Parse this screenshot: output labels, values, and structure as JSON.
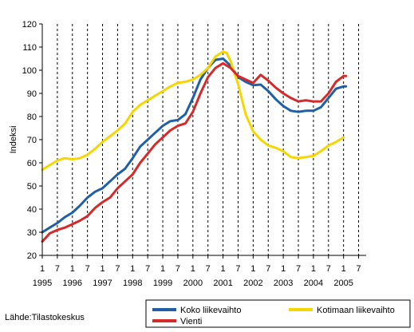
{
  "chart_data": {
    "type": "line",
    "ylabel": "Indeksi",
    "ylim": [
      20,
      120
    ],
    "yticks": [
      20,
      30,
      40,
      50,
      60,
      70,
      80,
      90,
      100,
      110,
      120
    ],
    "xlim": [
      1995.0,
      2005.75
    ],
    "month_tick_labels": [
      "1",
      "7",
      "1",
      "7",
      "1",
      "7",
      "1",
      "7",
      "1",
      "7",
      "1",
      "7",
      "1",
      "7",
      "1",
      "7",
      "1",
      "7",
      "1",
      "7",
      "1",
      "7"
    ],
    "year_labels": [
      "1995",
      "1996",
      "1997",
      "1998",
      "1999",
      "2000",
      "2001",
      "2002",
      "2003",
      "2004",
      "2005"
    ],
    "grid": "vertical dashed lines at each half-year",
    "legend_position": "bottom-right",
    "series": [
      {
        "name": "Koko liikevaihto",
        "color": "#1f5fa6",
        "x": [
          1995.0,
          1995.25,
          1995.5,
          1995.75,
          1996.0,
          1996.25,
          1996.5,
          1996.75,
          1997.0,
          1997.25,
          1997.5,
          1997.75,
          1998.0,
          1998.25,
          1998.5,
          1998.75,
          1999.0,
          1999.25,
          1999.5,
          1999.75,
          2000.0,
          2000.25,
          2000.5,
          2000.75,
          2001.0,
          2001.25,
          2001.5,
          2001.75,
          2002.0,
          2002.25,
          2002.5,
          2002.75,
          2003.0,
          2003.25,
          2003.5,
          2003.75,
          2004.0,
          2004.25,
          2004.5,
          2004.75,
          2005.0,
          2005.08
        ],
        "y": [
          30,
          32,
          34,
          36.5,
          38.5,
          41.5,
          45,
          47.5,
          49,
          52,
          55,
          57.5,
          62,
          67,
          70,
          73,
          76,
          78,
          78.5,
          81,
          88,
          96,
          101,
          104.5,
          105,
          102,
          97,
          95,
          93.5,
          93.8,
          91,
          87.5,
          84.5,
          82.5,
          82,
          82.5,
          82.5,
          84,
          88,
          92,
          93,
          93
        ]
      },
      {
        "name": "Kotimaan liikevaihto",
        "color": "#f5d600",
        "x": [
          1995.0,
          1995.25,
          1995.5,
          1995.75,
          1996.0,
          1996.25,
          1996.5,
          1996.75,
          1997.0,
          1997.25,
          1997.5,
          1997.75,
          1998.0,
          1998.25,
          1998.5,
          1998.75,
          1999.0,
          1999.25,
          1999.5,
          1999.75,
          2000.0,
          2000.25,
          2000.5,
          2000.75,
          2001.0,
          2001.12,
          2001.25,
          2001.5,
          2001.75,
          2002.0,
          2002.25,
          2002.5,
          2002.75,
          2003.0,
          2003.25,
          2003.5,
          2003.75,
          2004.0,
          2004.25,
          2004.5,
          2004.75,
          2005.0
        ],
        "y": [
          57,
          59,
          61,
          62,
          61.5,
          62,
          63.5,
          66,
          69,
          71.5,
          74,
          77,
          82,
          85,
          87,
          89,
          91,
          93,
          94.5,
          95,
          96,
          98,
          101,
          106,
          108,
          107.5,
          104,
          94,
          81,
          73.5,
          70,
          67.5,
          66.5,
          65,
          62.5,
          62,
          62.5,
          63,
          65,
          67.5,
          69,
          71
        ]
      },
      {
        "name": "Vienti",
        "color": "#d42a2a",
        "x": [
          1995.0,
          1995.25,
          1995.5,
          1995.75,
          1996.0,
          1996.25,
          1996.5,
          1996.75,
          1997.0,
          1997.25,
          1997.5,
          1997.75,
          1998.0,
          1998.25,
          1998.5,
          1998.75,
          1999.0,
          1999.25,
          1999.5,
          1999.75,
          2000.0,
          2000.25,
          2000.5,
          2000.75,
          2001.0,
          2001.25,
          2001.5,
          2001.75,
          2002.0,
          2002.25,
          2002.5,
          2002.75,
          2003.0,
          2003.25,
          2003.5,
          2003.75,
          2004.0,
          2004.25,
          2004.5,
          2004.75,
          2005.0,
          2005.08
        ],
        "y": [
          26,
          29.5,
          31,
          32,
          33.5,
          35,
          37,
          40.5,
          43,
          45,
          49,
          52,
          55,
          60,
          64,
          68,
          71,
          74,
          76,
          77,
          82,
          90,
          97,
          101,
          103,
          101,
          97.5,
          96,
          94.5,
          98,
          95.5,
          92.5,
          90,
          88,
          86.5,
          87,
          86.5,
          86.5,
          90,
          95,
          97.5,
          97.5
        ]
      }
    ]
  },
  "legend": {
    "items": [
      "Koko liikevaihto",
      "Kotimaan liikevaihto",
      "Vienti"
    ]
  },
  "source": "Lähde:Tilastokeskus"
}
